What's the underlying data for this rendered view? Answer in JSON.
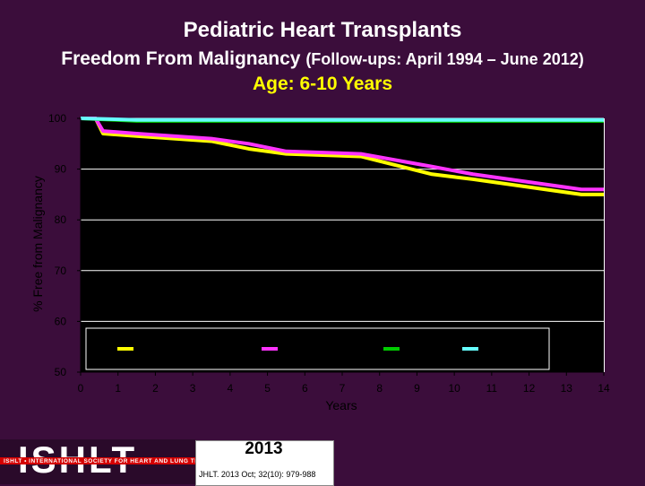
{
  "header": {
    "title": "Pediatric Heart Transplants",
    "subtitle_main": "Freedom From Malignancy",
    "subtitle_paren": "(Follow-ups: April 1994 – June 2012)",
    "age_group": "Age: 6-10 Years"
  },
  "footer": {
    "logo_text": "ISHLT",
    "logo_tagline": "ISHLT • INTERNATIONAL SOCIETY FOR HEART AND LUNG TRANSPLANTATION",
    "year": "2013",
    "citation": "JHLT. 2013 Oct; 32(10): 979-988"
  },
  "colors": {
    "background": "#3b0d3b",
    "plot_area": "#000000",
    "axis_area": "#ffffff"
  },
  "chart_data": {
    "type": "line",
    "title": "",
    "xlabel": "Years",
    "ylabel": "% Free from Malignancy",
    "xlim": [
      0,
      14
    ],
    "ylim": [
      50,
      100
    ],
    "x_ticks": [
      0,
      1,
      2,
      3,
      4,
      5,
      6,
      7,
      8,
      9,
      10,
      11,
      12,
      13,
      14
    ],
    "y_ticks": [
      50,
      60,
      70,
      80,
      90,
      100
    ],
    "legend": {
      "placement": "bottom",
      "entries_labeled": false
    },
    "series": [
      {
        "color": "#ffff00",
        "x": [
          0,
          0.4,
          0.6,
          1.5,
          3.5,
          4.5,
          5.5,
          7.5,
          9.4,
          10.5,
          13.4,
          14
        ],
        "y": [
          100,
          100,
          97,
          96.5,
          95.5,
          94,
          93,
          92.5,
          89,
          88,
          85,
          85
        ]
      },
      {
        "color": "#ff33ff",
        "x": [
          0,
          0.4,
          0.6,
          1.5,
          3.5,
          4.5,
          5.5,
          7.5,
          9.4,
          10.5,
          13.4,
          14
        ],
        "y": [
          100,
          100,
          97.5,
          97,
          96,
          95,
          93.5,
          93,
          90.5,
          89,
          86,
          86
        ]
      },
      {
        "color": "#00cc00",
        "x": [
          0,
          1.5,
          14
        ],
        "y": [
          100,
          99.5,
          99.5
        ]
      },
      {
        "color": "#66ffff",
        "x": [
          0,
          1.5,
          14
        ],
        "y": [
          100,
          99.7,
          99.7
        ]
      }
    ]
  }
}
